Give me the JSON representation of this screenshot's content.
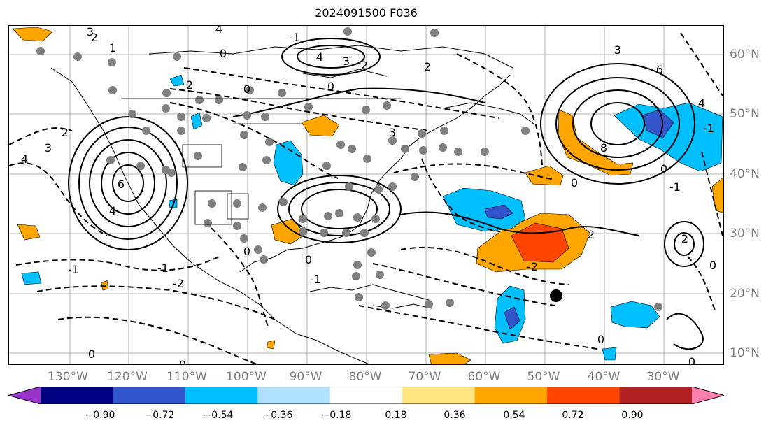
{
  "title": "2024091500 F036",
  "longitude_labels": [
    "130°W",
    "120°W",
    "110°W",
    "100°W",
    "90°W",
    "80°W",
    "70°W",
    "60°W",
    "50°W",
    "40°W",
    "30°W"
  ],
  "latitude_labels": [
    "60°N",
    "50°N",
    "40°N",
    "30°N",
    "20°N",
    "10°N"
  ],
  "colorbar": {
    "ticks": [
      "−0.90",
      "−0.72",
      "−0.54",
      "−0.36",
      "−0.18",
      "0.18",
      "0.36",
      "0.54",
      "0.72",
      "0.90"
    ],
    "colors": [
      "#9933cc",
      "#000080",
      "#3355cc",
      "#00bfff",
      "#b0e0ff",
      "#ffffff",
      "#ffe680",
      "#ffa500",
      "#ff4500",
      "#b22222",
      "#ff80b0"
    ]
  },
  "contour_labels": [
    "4",
    "3",
    "2",
    "1",
    "0",
    "-1",
    "-2",
    "2",
    "-1",
    "3",
    "4",
    "-1",
    "1",
    "2",
    "4",
    "0",
    "-2",
    "4",
    "6",
    "8",
    "2",
    "4",
    "-1",
    "0",
    "3",
    "-2",
    "-1",
    "0",
    "2",
    "2",
    "1",
    "-1",
    "4",
    "1",
    "2",
    "0",
    "0",
    "1",
    "-1",
    "0"
  ]
}
